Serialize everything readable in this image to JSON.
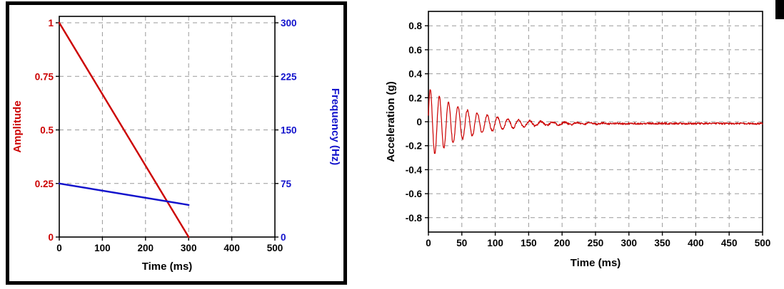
{
  "page": {
    "background": "#ffffff"
  },
  "colors": {
    "red": "#cc0000",
    "blue": "#1212cc",
    "grid": "#999999",
    "axis": "#000000"
  },
  "chart_data": [
    {
      "id": "sweep-profile",
      "type": "line",
      "title": "",
      "xlabel": "Time (ms)",
      "xlim": [
        0,
        500
      ],
      "xticks": [
        0,
        100,
        200,
        300,
        400,
        500
      ],
      "grid": true,
      "left_axis": {
        "label": "Amplitude",
        "color": "#cc0000",
        "lim": [
          0,
          1
        ],
        "ticks": [
          0,
          0.25,
          0.5,
          0.75,
          1
        ],
        "tick_labels": [
          "0",
          "0.25",
          "0.5",
          "0.75",
          "1"
        ]
      },
      "right_axis": {
        "label": "Frequency (Hz)",
        "color": "#1212cc",
        "lim": [
          0,
          300
        ],
        "ticks": [
          0,
          75,
          150,
          225,
          300
        ],
        "tick_labels": [
          "0",
          "75",
          "150",
          "225",
          "300"
        ]
      },
      "series": [
        {
          "name": "Amplitude",
          "axis": "left",
          "color": "#cc0000",
          "points": [
            [
              0,
              1
            ],
            [
              300,
              0
            ]
          ]
        },
        {
          "name": "Frequency",
          "axis": "right",
          "color": "#1212cc",
          "points": [
            [
              0,
              75
            ],
            [
              300,
              45
            ]
          ]
        }
      ]
    },
    {
      "id": "acceleration-history",
      "type": "line",
      "title": "",
      "xlabel": "Time (ms)",
      "ylabel": "Acceleration (g)",
      "xlim": [
        0,
        500
      ],
      "xticks": [
        0,
        50,
        100,
        150,
        200,
        250,
        300,
        350,
        400,
        450,
        500
      ],
      "ylim": [
        -0.92,
        0.92
      ],
      "yticks": [
        -0.8,
        -0.6,
        -0.4,
        -0.2,
        0,
        0.2,
        0.4,
        0.6,
        0.8
      ],
      "grid": true,
      "series_color": "#cc0000",
      "signal_model": {
        "description": "Exponentially decaying swept sine with small noise floor",
        "initial_amplitude_g": 0.3,
        "decay_time_constant_ms": 60,
        "freq_start_hz": 75,
        "freq_end_hz": 45,
        "sweep_duration_ms": 300,
        "noise_amplitude_g": 0.008,
        "baseline_g": -0.015,
        "sample_step_ms": 0.5
      }
    }
  ]
}
